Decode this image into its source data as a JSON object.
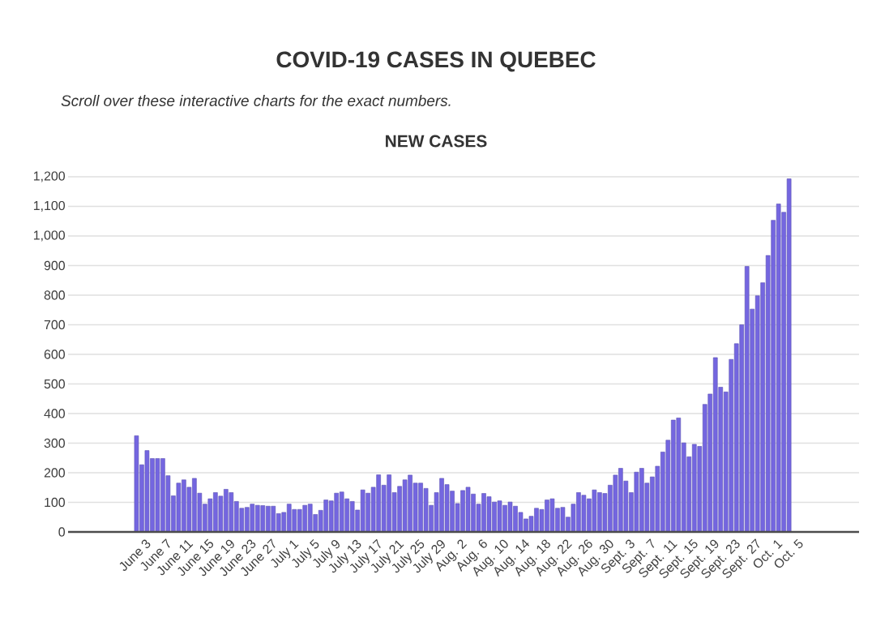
{
  "chart_data": {
    "type": "bar",
    "title": "COVID-19 CASES IN QUEBEC",
    "subtitle": "Scroll over these interactive charts for the exact numbers.",
    "annotations": [
      "NEW CASES"
    ],
    "categories": [
      "June 3",
      null,
      null,
      null,
      "June 7",
      null,
      null,
      null,
      "June 11",
      null,
      null,
      null,
      "June 15",
      null,
      null,
      null,
      "June 19",
      null,
      null,
      null,
      "June 23",
      null,
      null,
      null,
      "June 27",
      null,
      null,
      null,
      "July 1",
      null,
      null,
      null,
      "July 5",
      null,
      null,
      null,
      "July 9",
      null,
      null,
      null,
      "July 13",
      null,
      null,
      null,
      "July 17",
      null,
      null,
      null,
      "July 21",
      null,
      null,
      null,
      "July 25",
      null,
      null,
      null,
      "July 29",
      null,
      null,
      null,
      "Aug. 2",
      null,
      null,
      null,
      "Aug. 6",
      null,
      null,
      null,
      "Aug. 10",
      null,
      null,
      null,
      "Aug. 14",
      null,
      null,
      null,
      "Aug. 18",
      null,
      null,
      null,
      "Aug. 22",
      null,
      null,
      null,
      "Aug. 26",
      null,
      null,
      null,
      "Aug. 30",
      null,
      null,
      null,
      "Sept. 3",
      null,
      null,
      null,
      "Sept. 7",
      null,
      null,
      null,
      "Sept. 11",
      null,
      null,
      null,
      "Sept. 15",
      null,
      null,
      null,
      "Sept. 19",
      null,
      null,
      null,
      "Sept. 23",
      null,
      null,
      null,
      "Sept. 27",
      null,
      null,
      null,
      "Oct. 1",
      null,
      null,
      null,
      "Oct. 5"
    ],
    "values": [
      325,
      227,
      275,
      248,
      248,
      248,
      190,
      122,
      165,
      176,
      151,
      181,
      131,
      94,
      112,
      133,
      121,
      144,
      133,
      103,
      80,
      83,
      94,
      90,
      89,
      87,
      87,
      62,
      66,
      94,
      76,
      76,
      90,
      94,
      59,
      73,
      108,
      105,
      131,
      135,
      112,
      103,
      74,
      142,
      131,
      151,
      193,
      158,
      193,
      133,
      154,
      176,
      192,
      165,
      165,
      147,
      90,
      133,
      181,
      160,
      138,
      96,
      140,
      151,
      128,
      94,
      130,
      119,
      101,
      105,
      90,
      101,
      87,
      66,
      44,
      53,
      80,
      76,
      108,
      112,
      80,
      83,
      50,
      94,
      133,
      124,
      112,
      142,
      133,
      130,
      158,
      192,
      215,
      172,
      133,
      202,
      215,
      165,
      186,
      222,
      270,
      310,
      378,
      385,
      301,
      254,
      296,
      289,
      431,
      466,
      589,
      489,
      473,
      583,
      636,
      700,
      897,
      753,
      798,
      842,
      934,
      1053,
      1108,
      1080,
      1193
    ],
    "color": "#7466e0",
    "ylim": [
      0,
      1200
    ],
    "yticks": [
      {
        "value": 0,
        "label": "0"
      },
      {
        "value": 100,
        "label": "100"
      },
      {
        "value": 200,
        "label": "200"
      },
      {
        "value": 300,
        "label": "300"
      },
      {
        "value": 400,
        "label": "400"
      },
      {
        "value": 500,
        "label": "500"
      },
      {
        "value": 600,
        "label": "600"
      },
      {
        "value": 700,
        "label": "700"
      },
      {
        "value": 800,
        "label": "800"
      },
      {
        "value": 900,
        "label": "900"
      },
      {
        "value": 1000,
        "label": "1,000"
      },
      {
        "value": 1100,
        "label": "1,100"
      },
      {
        "value": 1200,
        "label": "1,200"
      }
    ],
    "grid": "y"
  }
}
